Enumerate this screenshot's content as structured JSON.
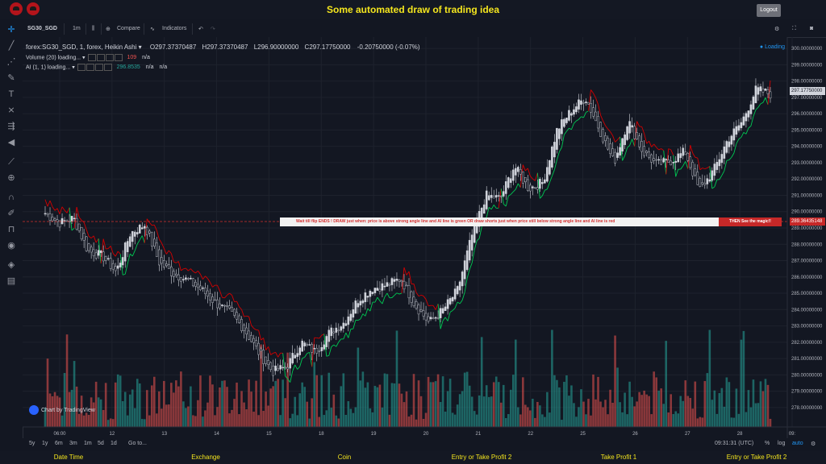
{
  "header": {
    "title": "Some automated draw of trading idea",
    "logout": "Logout"
  },
  "toolbar": {
    "symbol": "SG30_SGD",
    "interval": "1m",
    "compare": "Compare",
    "indicators": "Indicators"
  },
  "legend": {
    "main": "forex:SG30_SGD, 1, forex, Heikin Ashi",
    "open": "O297.37370487",
    "high": "H297.37370487",
    "low": "L296.90000000",
    "close": "C297.17750000",
    "change": "-0.20750000 (-0.07%)",
    "volume": "Volume (20) loading...",
    "volume_val": "109",
    "volume_na": "n/a",
    "ai": "AI (1, 1) loading...",
    "ai_val": "296.8535",
    "ai_na1": "n/a",
    "ai_na2": "n/a",
    "loading": "Loading"
  },
  "banner": {
    "text": "Wait till flip ENDS !  DRAW just when:  price is above strong angle line and AI line is green          OR          draw shorts just when price still below strong angle line and AI line is red",
    "magic": "THEN See the magic!!"
  },
  "price_labels": {
    "current": "297.17750000",
    "line": "289.36435148"
  },
  "watermark": "Chart by TradingView",
  "bottombar": {
    "ranges": [
      "5y",
      "1y",
      "6m",
      "3m",
      "1m",
      "5d",
      "1d"
    ],
    "goto": "Go to...",
    "time": "09:31:31 (UTC)",
    "percent": "%",
    "log": "log",
    "auto": "auto"
  },
  "footer": [
    "Date Time",
    "Exchange",
    "Coin",
    "Entry or Take Profit 2",
    "Take Profit 1",
    "Entry or Take Profit 2"
  ],
  "colors": {
    "up": "#26a69a",
    "down": "#ef5350",
    "bg": "#131722",
    "ai_green": "#00c853",
    "ai_red": "#d50000"
  },
  "chart_data": {
    "type": "candlestick",
    "price_axis": [
      "300.00000000",
      "299.00000000",
      "298.00000000",
      "297.00000000",
      "296.00000000",
      "295.00000000",
      "294.00000000",
      "293.00000000",
      "292.00000000",
      "291.00000000",
      "290.00000000",
      "289.00000000",
      "288.00000000",
      "287.00000000",
      "286.00000000",
      "285.00000000",
      "284.00000000",
      "283.00000000",
      "282.00000000",
      "281.00000000",
      "280.00000000",
      "279.00000000",
      "278.00000000"
    ],
    "price_range": [
      277.6,
      300.3
    ],
    "time_axis": [
      "06:00",
      "12",
      "13",
      "14",
      "15",
      "18",
      "19",
      "20",
      "21",
      "22",
      "25",
      "26",
      "27",
      "28",
      "09:"
    ],
    "close_path": [
      289.9,
      289.3,
      289.6,
      287.6,
      287.3,
      286.3,
      288.7,
      289.2,
      286.9,
      286.2,
      285.8,
      285.2,
      284.4,
      283.8,
      282.8,
      281.4,
      280.2,
      280.5,
      282.0,
      281.4,
      282.6,
      283.2,
      284.6,
      285.3,
      285.5,
      285.9,
      284.3,
      283.2,
      284.0,
      285.2,
      288.5,
      291.0,
      290.8,
      292.8,
      291.4,
      291.8,
      295.0,
      296.2,
      297.0,
      295.0,
      293.0,
      295.6,
      293.7,
      292.9,
      293.1,
      293.7,
      291.3,
      292.5,
      294.4,
      295.5,
      297.5,
      297.2
    ],
    "volume_range": [
      0,
      109
    ]
  }
}
